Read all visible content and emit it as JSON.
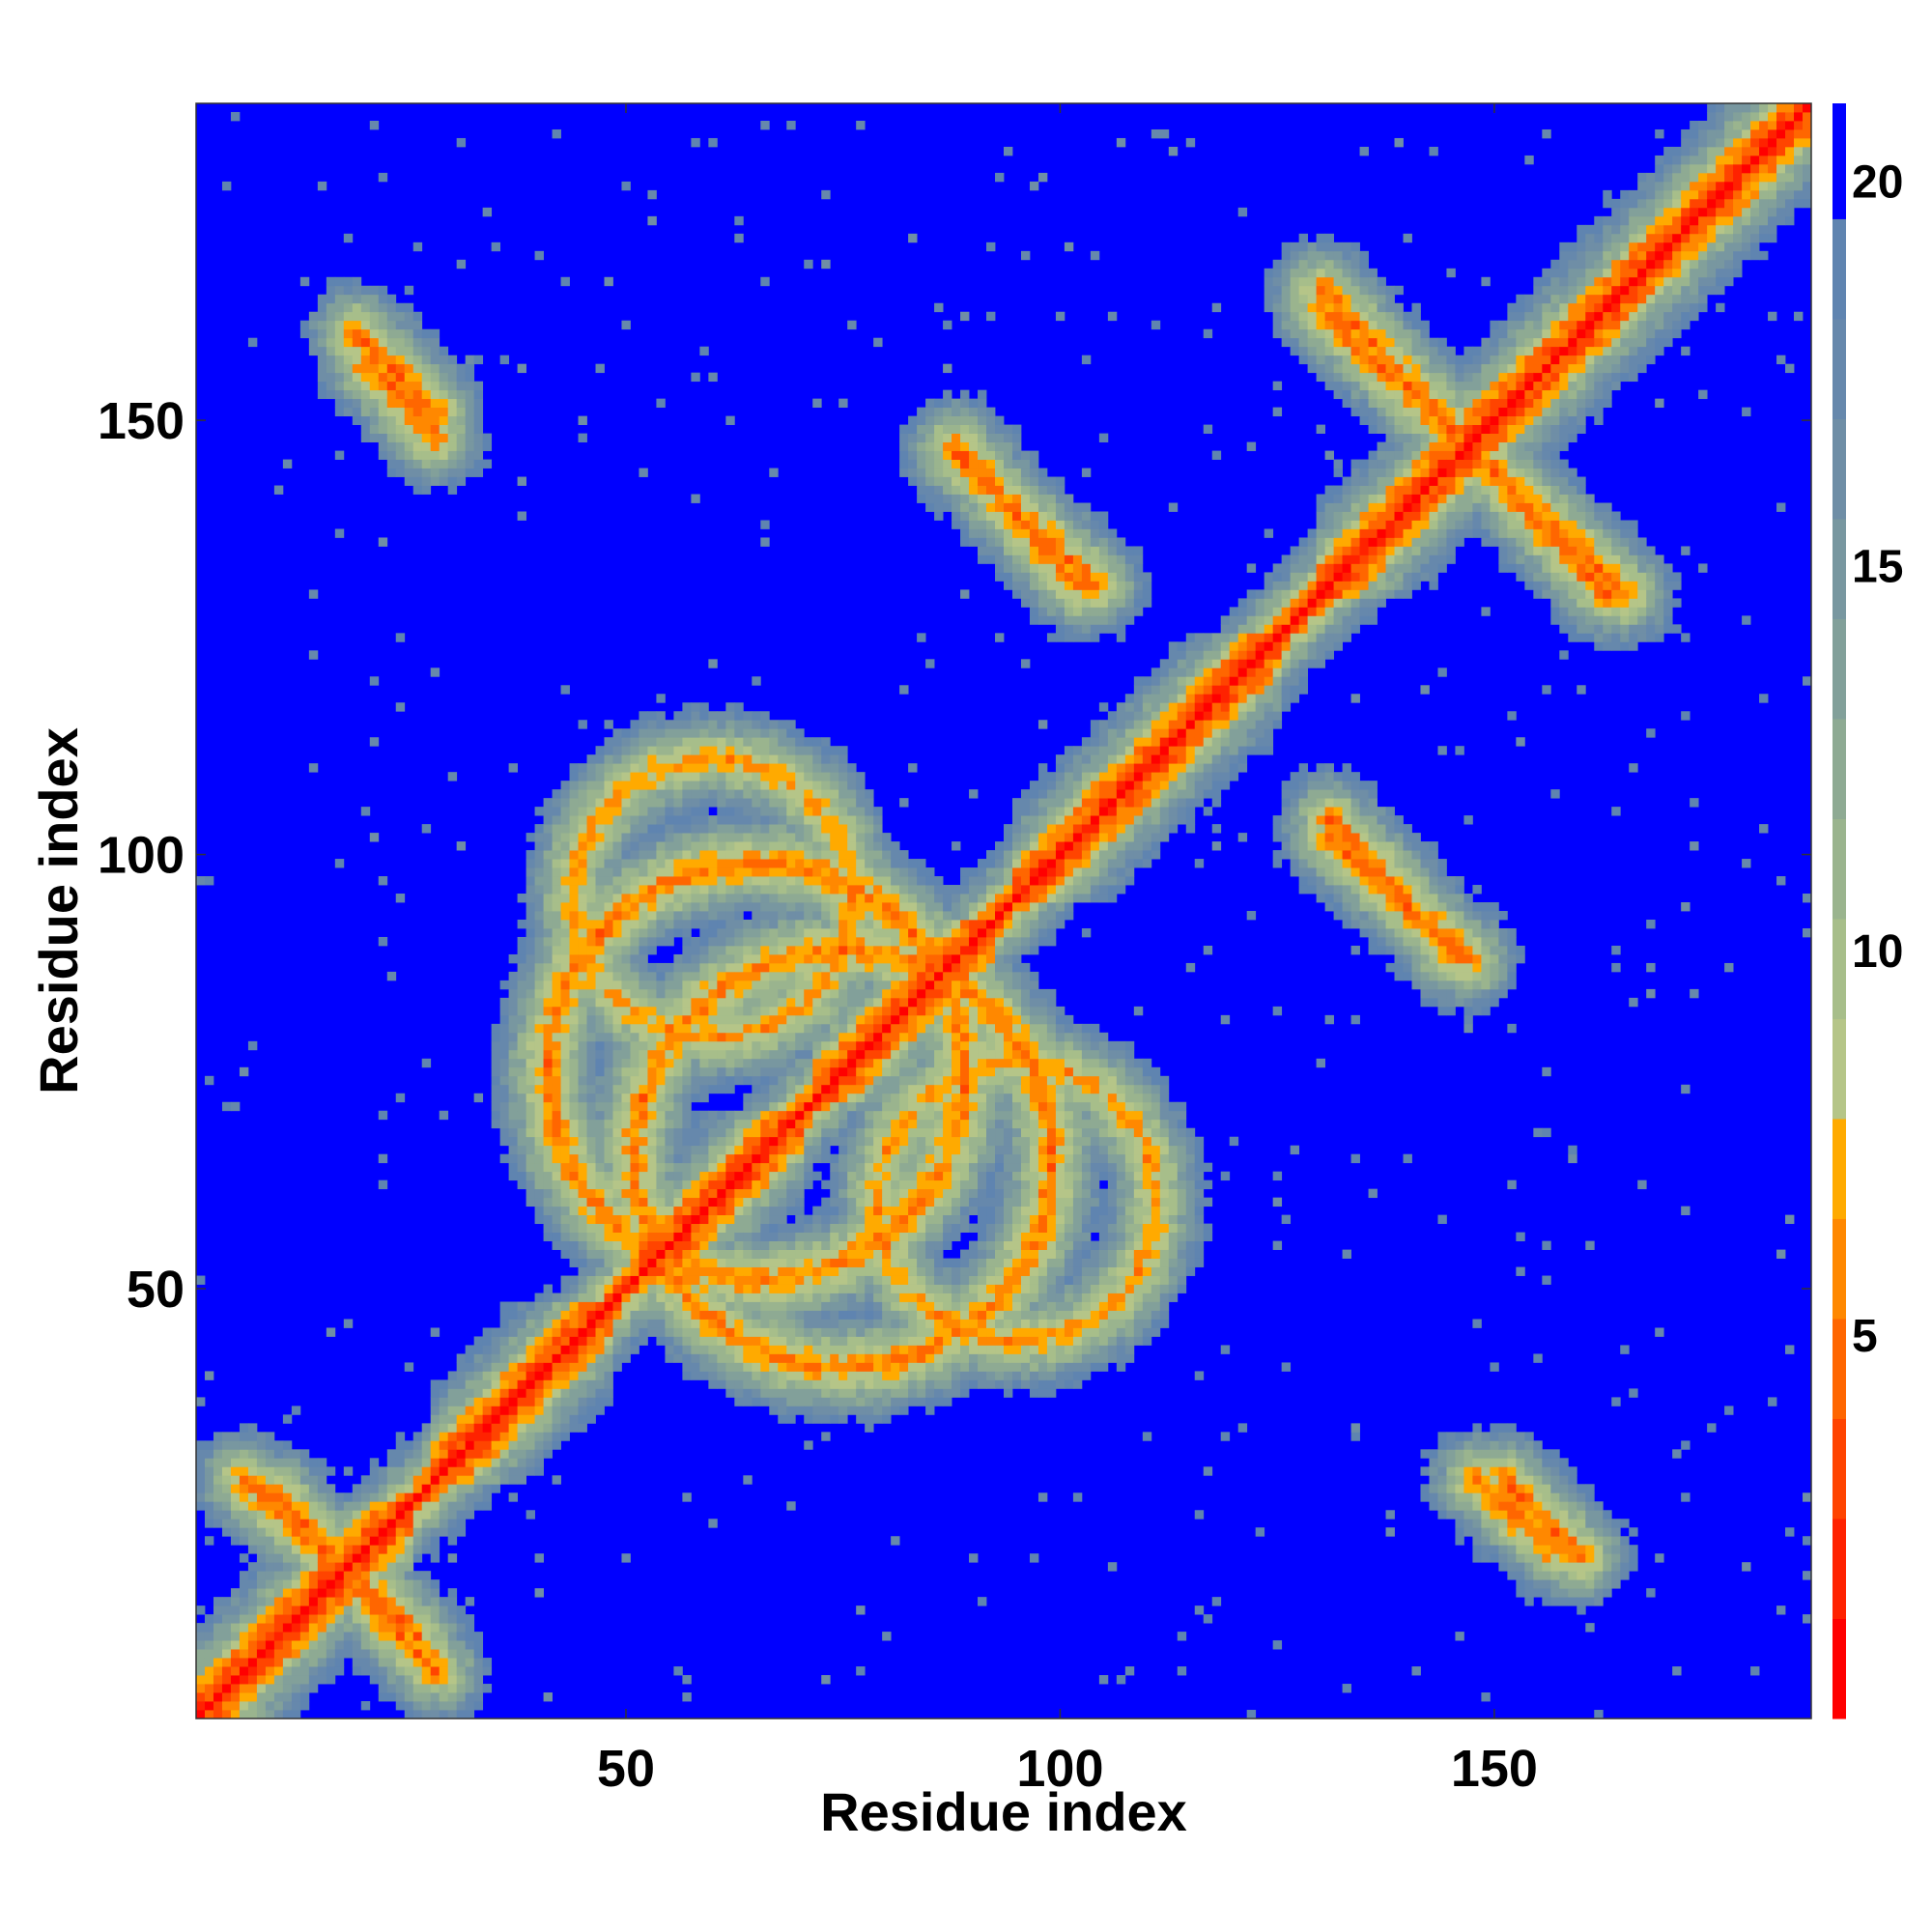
{
  "chart_data": {
    "type": "heatmap",
    "description_value": "pairwise residue distance map (values in Angstrom-like units, clipped at colorbar max)",
    "xlabel": "Residue index",
    "ylabel": "Residue index",
    "n_residues": 186,
    "xlim": [
      1,
      186
    ],
    "ylim": [
      1,
      186
    ],
    "x_ticks": [
      50,
      100,
      150
    ],
    "y_ticks": [
      50,
      100,
      150
    ],
    "colorbar": {
      "ticks": [
        5,
        10,
        15,
        20
      ],
      "range": [
        0,
        21
      ],
      "levels": [
        {
          "max": 1.3,
          "color": "#ff0000"
        },
        {
          "max": 2.6,
          "color": "#ff2200"
        },
        {
          "max": 3.9,
          "color": "#ff4400"
        },
        {
          "max": 5.2,
          "color": "#ff6600"
        },
        {
          "max": 6.5,
          "color": "#ff8800"
        },
        {
          "max": 7.8,
          "color": "#ffaa00"
        },
        {
          "max": 9.1,
          "color": "#b5c588"
        },
        {
          "max": 10.4,
          "color": "#a7be8a"
        },
        {
          "max": 11.7,
          "color": "#9ab48e"
        },
        {
          "max": 13.0,
          "color": "#8eaa93"
        },
        {
          "max": 14.3,
          "color": "#82a09a"
        },
        {
          "max": 15.6,
          "color": "#7897a0"
        },
        {
          "max": 16.9,
          "color": "#6f8ea6"
        },
        {
          "max": 18.2,
          "color": "#6688ac"
        },
        {
          "max": 19.5,
          "color": "#5f84b0"
        },
        {
          "max": 21.0,
          "color": "#0000ff"
        }
      ]
    },
    "structure_features": {
      "main_diagonal": {
        "from": 1,
        "to": 186,
        "value": 0
      },
      "helices_along_diagonal": [
        [
          1,
          25
        ],
        [
          28,
          48
        ],
        [
          52,
          70
        ],
        [
          72,
          92
        ],
        [
          95,
          125
        ],
        [
          130,
          186
        ]
      ],
      "antiparallel_contacts": [
        {
          "i_range": [
            19,
            28
          ],
          "j_range": [
            160,
            151
          ],
          "min_value": 4.5
        },
        {
          "i_range": [
            88,
            102
          ],
          "j_range": [
            147,
            131
          ],
          "min_value": 4.5
        },
        {
          "i_range": [
            130,
            146
          ],
          "j_range": [
            165,
            148
          ],
          "min_value": 4.5
        },
        {
          "i_range": [
            146,
            163
          ],
          "j_range": [
            148,
            130
          ],
          "min_value": 4.5
        },
        {
          "i_range": [
            131,
            146
          ],
          "j_range": [
            104,
            88
          ],
          "min_value": 4.5
        },
        {
          "i_range": [
            148,
            157
          ],
          "j_range": [
            28,
            20
          ],
          "min_value": 4.5
        },
        {
          "i_range": [
            6,
            26
          ],
          "j_range": [
            28,
            10
          ],
          "min_value": 4.5
        }
      ],
      "contact_loops": [
        {
          "center": [
            65,
            75
          ],
          "radius": 24,
          "min_value": 5
        },
        {
          "center": [
            95,
            60
          ],
          "radius": 16,
          "min_value": 6
        }
      ]
    }
  }
}
